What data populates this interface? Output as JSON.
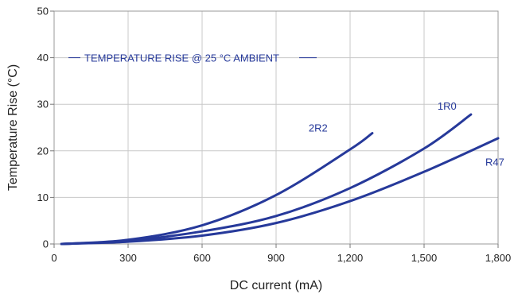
{
  "chart_data": {
    "type": "line",
    "title": "",
    "annotation": "TEMPERATURE RISE @ 25 °C AMBIENT",
    "xlabel": "DC current (mA)",
    "ylabel": "Temperature Rise (°C)",
    "xlim": [
      0,
      1800
    ],
    "ylim": [
      0,
      50
    ],
    "xticks": [
      0,
      300,
      600,
      900,
      1200,
      1500,
      1800
    ],
    "xtick_labels": [
      "0",
      "300",
      "600",
      "900",
      "1,200",
      "1,500",
      "1,800"
    ],
    "yticks": [
      0,
      10,
      20,
      30,
      40,
      50
    ],
    "ytick_labels": [
      "0",
      "10",
      "20",
      "30",
      "40",
      "50"
    ],
    "grid": true,
    "line_color": "#26399a",
    "grid_color": "#c8c8c8",
    "series": [
      {
        "name": "2R2",
        "x": [
          30,
          300,
          600,
          900,
          1200,
          1290
        ],
        "y": [
          0,
          0.9,
          4.0,
          10.5,
          20.3,
          23.8
        ]
      },
      {
        "name": "1R0",
        "x": [
          30,
          300,
          600,
          900,
          1200,
          1500,
          1690
        ],
        "y": [
          0,
          0.7,
          2.7,
          6.0,
          12.0,
          20.5,
          27.8
        ]
      },
      {
        "name": "R47",
        "x": [
          30,
          300,
          600,
          900,
          1200,
          1500,
          1800
        ],
        "y": [
          0,
          0.5,
          1.8,
          4.5,
          9.2,
          15.5,
          22.7
        ]
      }
    ]
  }
}
